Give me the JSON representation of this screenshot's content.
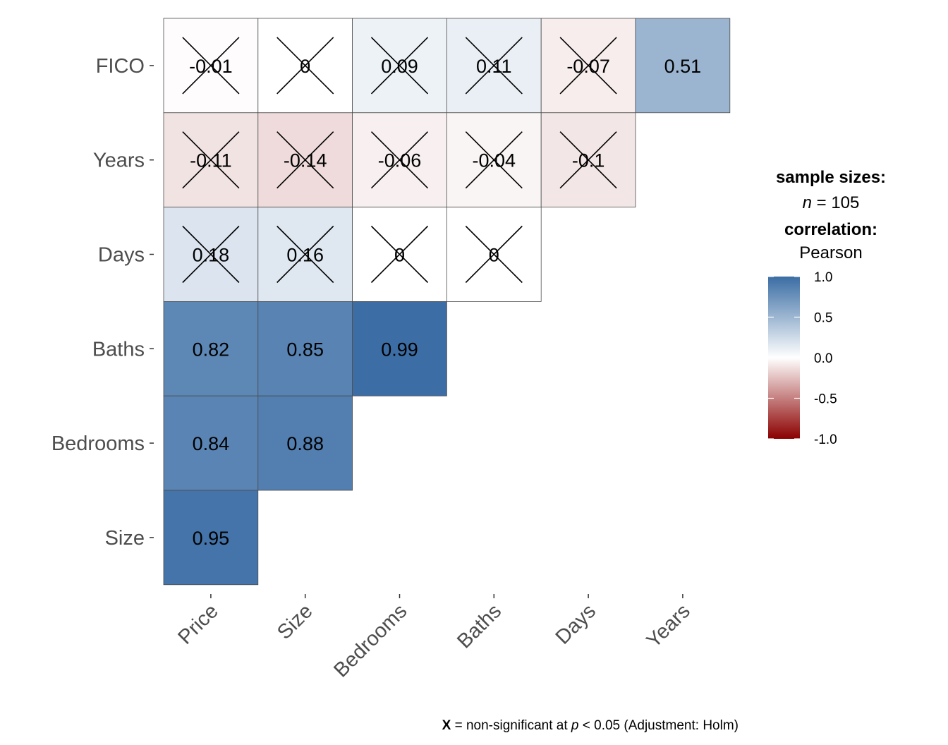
{
  "chart_data": {
    "type": "heatmap",
    "x_labels": [
      "Price",
      "Size",
      "Bedrooms",
      "Baths",
      "Days",
      "Years"
    ],
    "y_labels": [
      "FICO",
      "Years",
      "Days",
      "Baths",
      "Bedrooms",
      "Size"
    ],
    "cells": [
      {
        "x": "Price",
        "y": "FICO",
        "value": -0.01,
        "label": "-0.01",
        "nonsig": true
      },
      {
        "x": "Size",
        "y": "FICO",
        "value": 0,
        "label": "0",
        "nonsig": true
      },
      {
        "x": "Bedrooms",
        "y": "FICO",
        "value": 0.09,
        "label": "0.09",
        "nonsig": true
      },
      {
        "x": "Baths",
        "y": "FICO",
        "value": 0.11,
        "label": "0.11",
        "nonsig": true
      },
      {
        "x": "Days",
        "y": "FICO",
        "value": -0.07,
        "label": "-0.07",
        "nonsig": true
      },
      {
        "x": "Years",
        "y": "FICO",
        "value": 0.51,
        "label": "0.51",
        "nonsig": false
      },
      {
        "x": "Price",
        "y": "Years",
        "value": -0.11,
        "label": "-0.11",
        "nonsig": true
      },
      {
        "x": "Size",
        "y": "Years",
        "value": -0.14,
        "label": "-0.14",
        "nonsig": true
      },
      {
        "x": "Bedrooms",
        "y": "Years",
        "value": -0.06,
        "label": "-0.06",
        "nonsig": true
      },
      {
        "x": "Baths",
        "y": "Years",
        "value": -0.04,
        "label": "-0.04",
        "nonsig": true
      },
      {
        "x": "Days",
        "y": "Years",
        "value": -0.1,
        "label": "-0.1",
        "nonsig": true
      },
      {
        "x": "Price",
        "y": "Days",
        "value": 0.18,
        "label": "0.18",
        "nonsig": true
      },
      {
        "x": "Size",
        "y": "Days",
        "value": 0.16,
        "label": "0.16",
        "nonsig": true
      },
      {
        "x": "Bedrooms",
        "y": "Days",
        "value": 0,
        "label": "0",
        "nonsig": true
      },
      {
        "x": "Baths",
        "y": "Days",
        "value": 0,
        "label": "0",
        "nonsig": true
      },
      {
        "x": "Price",
        "y": "Baths",
        "value": 0.82,
        "label": "0.82",
        "nonsig": false
      },
      {
        "x": "Size",
        "y": "Baths",
        "value": 0.85,
        "label": "0.85",
        "nonsig": false
      },
      {
        "x": "Bedrooms",
        "y": "Baths",
        "value": 0.99,
        "label": "0.99",
        "nonsig": false
      },
      {
        "x": "Price",
        "y": "Bedrooms",
        "value": 0.84,
        "label": "0.84",
        "nonsig": false
      },
      {
        "x": "Size",
        "y": "Bedrooms",
        "value": 0.88,
        "label": "0.88",
        "nonsig": false
      },
      {
        "x": "Price",
        "y": "Size",
        "value": 0.95,
        "label": "0.95",
        "nonsig": false
      }
    ],
    "legend": {
      "sample_sizes_title": "sample sizes:",
      "n_label": "n",
      "n_text": " = 105",
      "correlation_title": "correlation:",
      "correlation_method": "Pearson",
      "scale_range": [
        -1,
        1
      ],
      "ticks": [
        "1.0",
        "0.5",
        "0.0",
        "-0.5",
        "-1.0"
      ],
      "tick_values": [
        1,
        0.5,
        0,
        -0.5,
        -1
      ],
      "colors": {
        "low": "#8B0000",
        "mid": "#FFFFFF",
        "high": "#3A6DA4"
      }
    },
    "caption": {
      "symbol": "X",
      "text_before_p": " = non-significant at ",
      "p": "p",
      "text_after_p": " < 0.05 (Adjustment: Holm)"
    }
  }
}
